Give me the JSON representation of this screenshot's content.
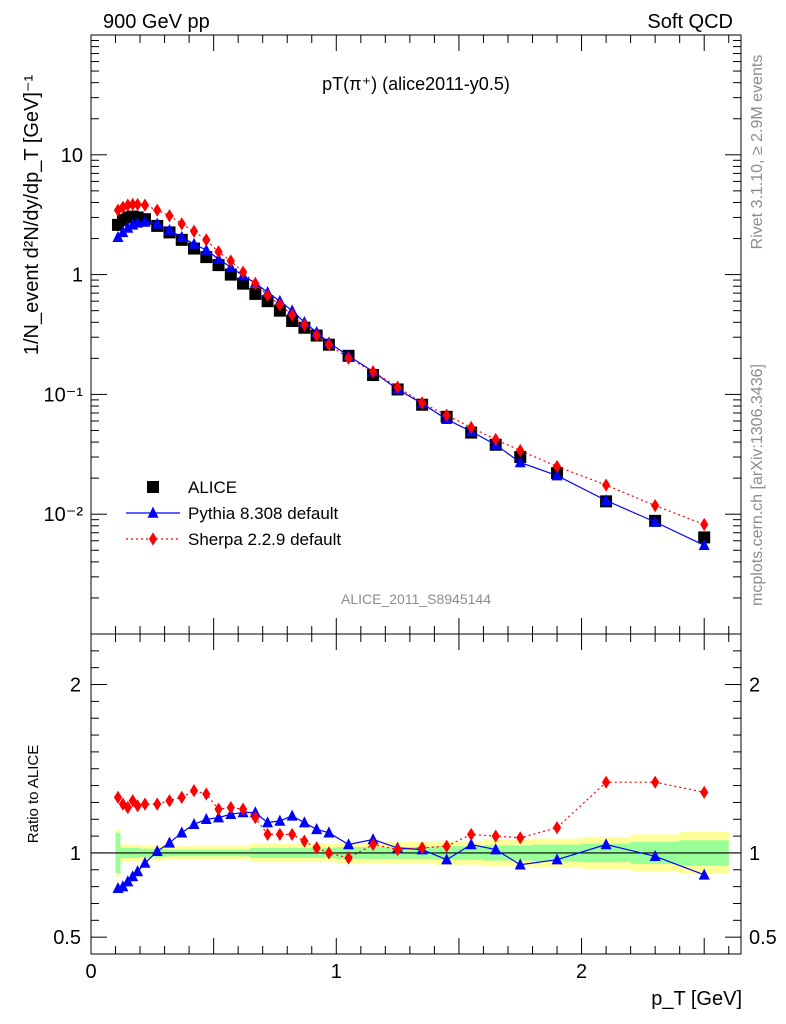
{
  "header": {
    "left_label": "900 GeV pp",
    "right_label": "Soft QCD"
  },
  "side_labels": {
    "rivet": "Rivet 3.1.10, ≥ 2.9M events",
    "mcplots": "mcplots.cern.ch [arXiv:1306.3436]"
  },
  "chart_data": [
    {
      "type": "scatter",
      "panel": "main",
      "title": "pT(π⁺) (alice2011-y0.5)",
      "xlabel": "p_T [GeV]",
      "ylabel": "1/N_event d²N/dy/dp_T [GeV]⁻¹",
      "annotation": "ALICE_2011_S8945144",
      "yscale": "log",
      "xlim": [
        0,
        2.65
      ],
      "ylim": [
        0.001,
        100
      ],
      "ytick_labels": [
        "10⁻²",
        "10⁻¹",
        "1",
        "10"
      ],
      "legend_position": "lower-left",
      "series": [
        {
          "name": "ALICE",
          "color": "#000000",
          "marker": "square",
          "x": [
            0.11,
            0.13,
            0.15,
            0.17,
            0.19,
            0.22,
            0.27,
            0.32,
            0.37,
            0.42,
            0.47,
            0.52,
            0.57,
            0.62,
            0.67,
            0.72,
            0.77,
            0.82,
            0.87,
            0.92,
            0.97,
            1.05,
            1.15,
            1.25,
            1.35,
            1.45,
            1.55,
            1.65,
            1.75,
            1.9,
            2.1,
            2.3,
            2.5
          ],
          "y": [
            2.6,
            2.85,
            3.0,
            3.05,
            3.0,
            2.9,
            2.55,
            2.25,
            1.95,
            1.65,
            1.4,
            1.2,
            1.0,
            0.84,
            0.69,
            0.6,
            0.5,
            0.41,
            0.36,
            0.31,
            0.26,
            0.21,
            0.145,
            0.11,
            0.082,
            0.065,
            0.048,
            0.038,
            0.03,
            0.022,
            0.0128,
            0.0088,
            0.0064
          ]
        },
        {
          "name": "Pythia 8.308 default",
          "color": "#0000ff",
          "marker": "triangle",
          "line": "solid",
          "x": [
            0.11,
            0.13,
            0.15,
            0.17,
            0.19,
            0.22,
            0.27,
            0.32,
            0.37,
            0.42,
            0.47,
            0.52,
            0.57,
            0.62,
            0.67,
            0.72,
            0.77,
            0.82,
            0.87,
            0.92,
            0.97,
            1.05,
            1.15,
            1.25,
            1.35,
            1.45,
            1.55,
            1.65,
            1.75,
            1.9,
            2.1,
            2.3,
            2.5
          ],
          "y": [
            2.05,
            2.25,
            2.45,
            2.6,
            2.7,
            2.75,
            2.65,
            2.35,
            2.05,
            1.8,
            1.6,
            1.35,
            1.15,
            0.98,
            0.85,
            0.71,
            0.6,
            0.5,
            0.4,
            0.33,
            0.27,
            0.21,
            0.155,
            0.11,
            0.084,
            0.062,
            0.049,
            0.038,
            0.027,
            0.021,
            0.013,
            0.0086,
            0.0055
          ]
        },
        {
          "name": "Sherpa 2.2.9 default",
          "color": "#ff0000",
          "marker": "diamond",
          "line": "dotted",
          "x": [
            0.11,
            0.13,
            0.15,
            0.17,
            0.19,
            0.22,
            0.27,
            0.32,
            0.37,
            0.42,
            0.47,
            0.52,
            0.57,
            0.62,
            0.67,
            0.72,
            0.77,
            0.82,
            0.87,
            0.92,
            0.97,
            1.05,
            1.15,
            1.25,
            1.35,
            1.45,
            1.55,
            1.65,
            1.75,
            1.9,
            2.1,
            2.3,
            2.5
          ],
          "y": [
            3.45,
            3.65,
            3.8,
            3.85,
            3.85,
            3.8,
            3.45,
            3.1,
            2.65,
            2.3,
            1.95,
            1.55,
            1.3,
            1.05,
            0.84,
            0.67,
            0.56,
            0.46,
            0.38,
            0.31,
            0.26,
            0.2,
            0.155,
            0.115,
            0.085,
            0.067,
            0.053,
            0.042,
            0.034,
            0.025,
            0.0175,
            0.0118,
            0.0082
          ]
        }
      ]
    },
    {
      "type": "scatter",
      "panel": "ratio",
      "xlabel": "p_T [GeV]",
      "ylabel": "Ratio to ALICE",
      "xlim": [
        0,
        2.65
      ],
      "ylim": [
        0.4,
        2.3
      ],
      "ytick_labels": [
        "0.5",
        "1",
        "2"
      ],
      "xtick_labels": [
        "0",
        "1",
        "2"
      ],
      "reference_line": 1,
      "bands": {
        "inner_color": "#99ff99",
        "outer_color": "#ffff99",
        "bins": [
          {
            "x0": 0.1,
            "x1": 0.12,
            "inner": 0.12,
            "outer": 0.14
          },
          {
            "x0": 0.12,
            "x1": 0.2,
            "inner": 0.03,
            "outer": 0.05
          },
          {
            "x0": 0.2,
            "x1": 0.3,
            "inner": 0.025,
            "outer": 0.045
          },
          {
            "x0": 0.3,
            "x1": 0.45,
            "inner": 0.02,
            "outer": 0.04
          },
          {
            "x0": 0.45,
            "x1": 0.65,
            "inner": 0.02,
            "outer": 0.04
          },
          {
            "x0": 0.65,
            "x1": 1.0,
            "inner": 0.03,
            "outer": 0.055
          },
          {
            "x0": 1.0,
            "x1": 1.2,
            "inner": 0.035,
            "outer": 0.06
          },
          {
            "x0": 1.2,
            "x1": 1.4,
            "inner": 0.035,
            "outer": 0.065
          },
          {
            "x0": 1.4,
            "x1": 1.6,
            "inner": 0.04,
            "outer": 0.07
          },
          {
            "x0": 1.6,
            "x1": 1.8,
            "inner": 0.045,
            "outer": 0.08
          },
          {
            "x0": 1.8,
            "x1": 2.0,
            "inner": 0.05,
            "outer": 0.085
          },
          {
            "x0": 2.0,
            "x1": 2.2,
            "inner": 0.055,
            "outer": 0.095
          },
          {
            "x0": 2.2,
            "x1": 2.4,
            "inner": 0.065,
            "outer": 0.11
          },
          {
            "x0": 2.4,
            "x1": 2.6,
            "inner": 0.075,
            "outer": 0.125
          }
        ]
      },
      "series": [
        {
          "name": "Pythia 8.308 default",
          "color": "#0000ff",
          "marker": "triangle",
          "line": "solid",
          "x": [
            0.11,
            0.13,
            0.15,
            0.17,
            0.19,
            0.22,
            0.27,
            0.32,
            0.37,
            0.42,
            0.47,
            0.52,
            0.57,
            0.62,
            0.67,
            0.72,
            0.77,
            0.82,
            0.87,
            0.92,
            0.97,
            1.05,
            1.15,
            1.25,
            1.35,
            1.45,
            1.55,
            1.65,
            1.75,
            1.9,
            2.1,
            2.3,
            2.5
          ],
          "y": [
            0.79,
            0.8,
            0.83,
            0.86,
            0.89,
            0.94,
            1.01,
            1.06,
            1.12,
            1.17,
            1.2,
            1.21,
            1.23,
            1.24,
            1.24,
            1.18,
            1.19,
            1.22,
            1.18,
            1.14,
            1.12,
            1.05,
            1.08,
            1.03,
            1.02,
            0.96,
            1.05,
            1.02,
            0.93,
            0.96,
            1.05,
            0.98,
            0.87
          ]
        },
        {
          "name": "Sherpa 2.2.9 default",
          "color": "#ff0000",
          "marker": "diamond",
          "line": "dotted",
          "x": [
            0.11,
            0.13,
            0.15,
            0.17,
            0.19,
            0.22,
            0.27,
            0.32,
            0.37,
            0.42,
            0.47,
            0.52,
            0.57,
            0.62,
            0.67,
            0.72,
            0.77,
            0.82,
            0.87,
            0.92,
            0.97,
            1.05,
            1.15,
            1.25,
            1.35,
            1.45,
            1.55,
            1.65,
            1.75,
            1.9,
            2.1,
            2.3,
            2.5
          ],
          "y": [
            1.33,
            1.29,
            1.27,
            1.31,
            1.28,
            1.29,
            1.29,
            1.31,
            1.33,
            1.37,
            1.35,
            1.26,
            1.27,
            1.26,
            1.21,
            1.11,
            1.11,
            1.11,
            1.07,
            1.03,
            1.0,
            0.97,
            1.05,
            1.02,
            1.03,
            1.04,
            1.11,
            1.1,
            1.09,
            1.15,
            1.42,
            1.42,
            1.36
          ]
        }
      ]
    }
  ]
}
